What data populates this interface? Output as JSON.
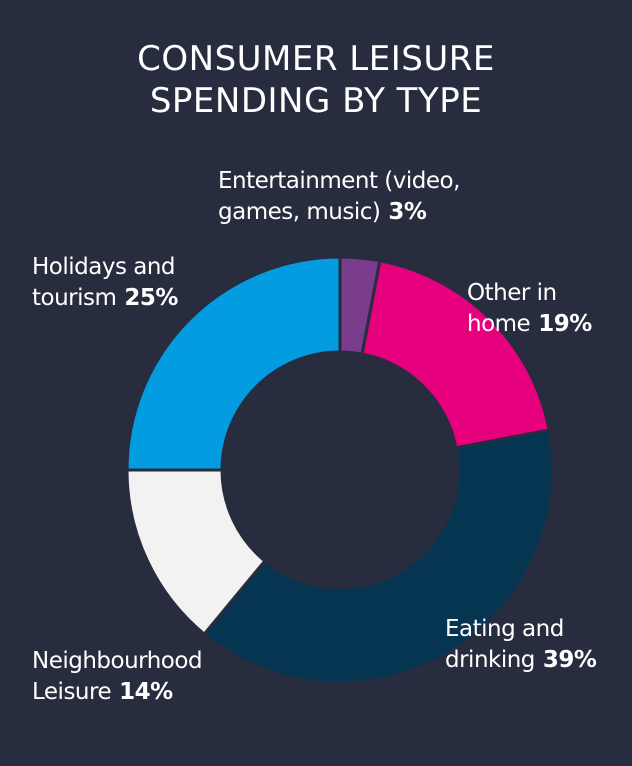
{
  "chart_data": {
    "type": "pie",
    "title": "CONSUMER LEISURE SPENDING BY TYPE",
    "title_lines": [
      "CONSUMER LEISURE",
      "SPENDING BY TYPE"
    ],
    "donut": true,
    "slices": [
      {
        "label": "Entertainment (video, games, music)",
        "label_lines": [
          "Entertainment (video,",
          "games, music)"
        ],
        "value": 3,
        "value_label": "3%",
        "color": "#7a3d8e"
      },
      {
        "label": "Other in home",
        "label_lines": [
          "Other in",
          "home"
        ],
        "value": 19,
        "value_label": "19%",
        "color": "#e6007e"
      },
      {
        "label": "Eating and drinking",
        "label_lines": [
          "Eating and",
          "drinking"
        ],
        "value": 39,
        "value_label": "39%",
        "color": "#063551"
      },
      {
        "label": "Neighbourhood Leisure",
        "label_lines": [
          "Neighbourhood",
          "Leisure"
        ],
        "value": 14,
        "value_label": "14%",
        "color": "#f2f2f2"
      },
      {
        "label": "Holidays and tourism",
        "label_lines": [
          "Holidays and",
          "tourism"
        ],
        "value": 25,
        "value_label": "25%",
        "color": "#039ce0"
      }
    ]
  },
  "colors": {
    "background": "#272c3e",
    "text": "#ffffff"
  }
}
